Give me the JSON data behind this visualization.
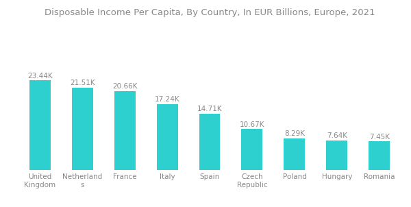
{
  "title": "Disposable Income Per Capita, By Country, In EUR Billions, Europe, 2021",
  "categories": [
    "United\nKingdom",
    "Netherland\ns",
    "France",
    "Italy",
    "Spain",
    "Czech\nRepublic",
    "Poland",
    "Hungary",
    "Romania"
  ],
  "values": [
    23.44,
    21.51,
    20.66,
    17.24,
    14.71,
    10.67,
    8.29,
    7.64,
    7.45
  ],
  "labels": [
    "23.44K",
    "21.51K",
    "20.66K",
    "17.24K",
    "14.71K",
    "10.67K",
    "8.29K",
    "7.64K",
    "7.45K"
  ],
  "bar_color": "#2ECFCF",
  "background_color": "#ffffff",
  "title_fontsize": 9.5,
  "label_fontsize": 7.5,
  "tick_fontsize": 7.5,
  "ylim": [
    0,
    38
  ],
  "bar_width": 0.5
}
